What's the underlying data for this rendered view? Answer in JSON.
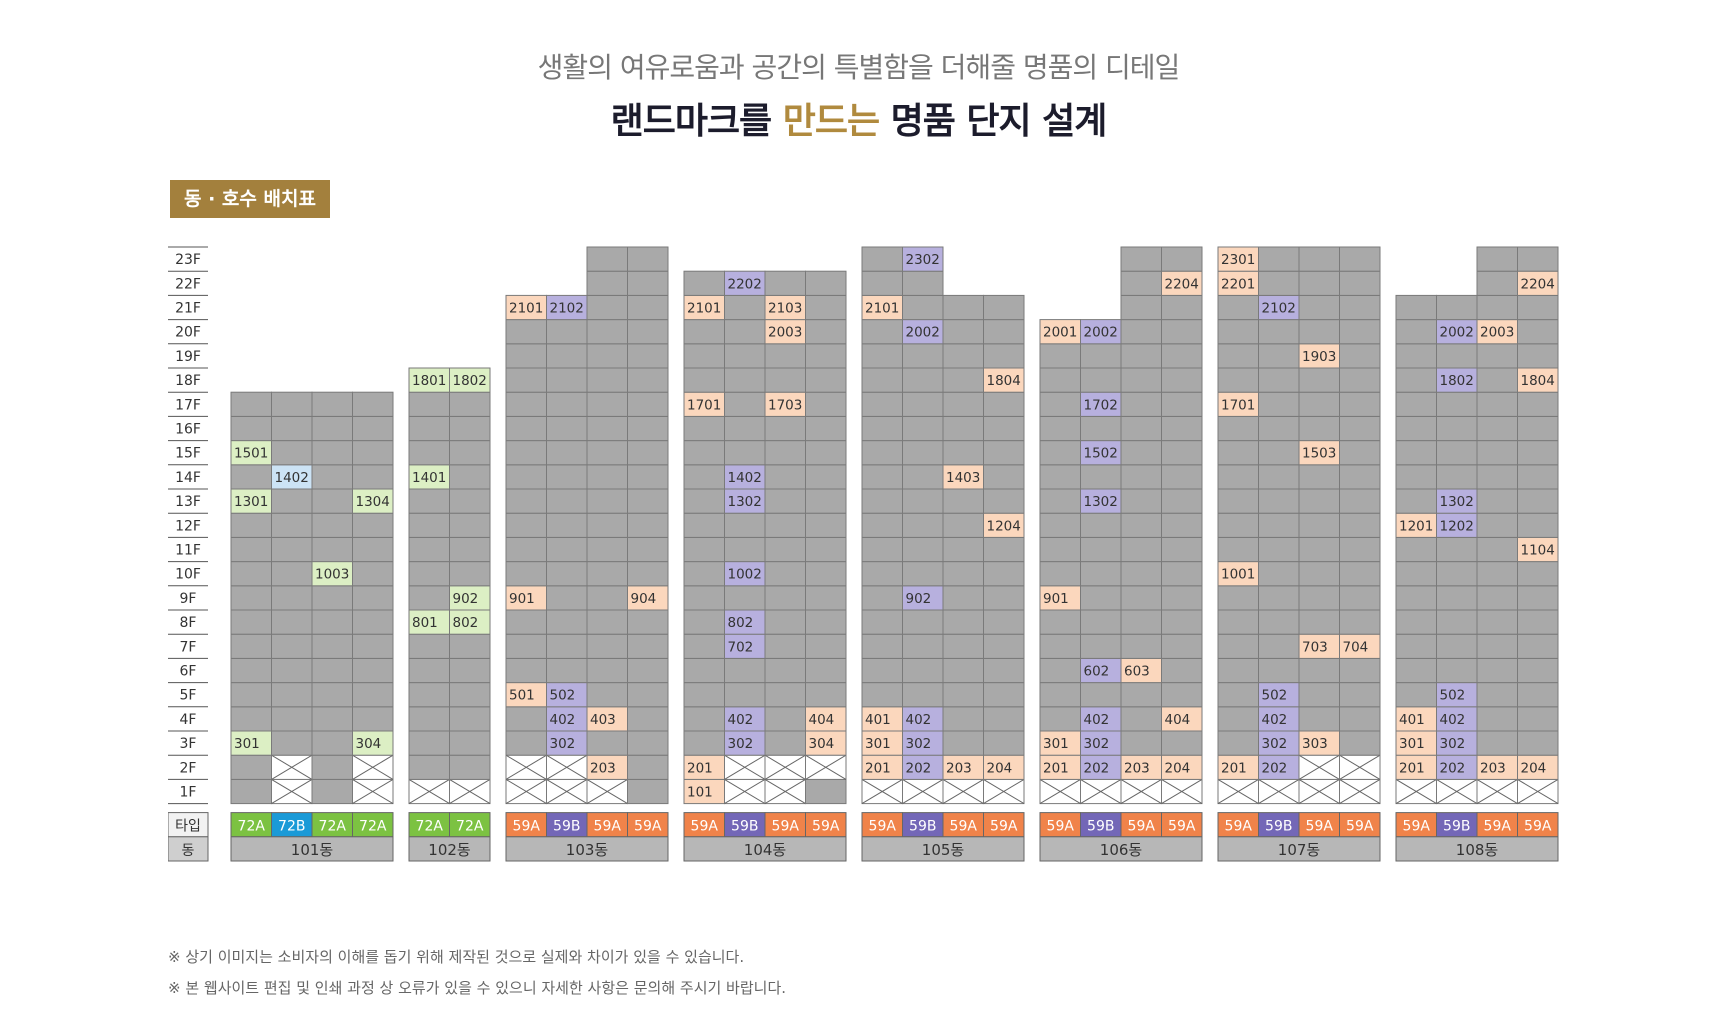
{
  "header": {
    "subtitle": "생활의 여유로움과 공간의 특별함을 더해줄 명품의 디테일",
    "title_pre": "랜드마크를 ",
    "title_accent": "만드는",
    "title_post": " 명품 단지 설계"
  },
  "badge": "동 · 호수 배치표",
  "axis": {
    "floors": [
      "23F",
      "22F",
      "21F",
      "20F",
      "19F",
      "18F",
      "17F",
      "16F",
      "15F",
      "14F",
      "13F",
      "12F",
      "11F",
      "10F",
      "9F",
      "8F",
      "7F",
      "6F",
      "5F",
      "4F",
      "3F",
      "2F",
      "1F"
    ],
    "type_label": "타입",
    "dong_label": "동"
  },
  "colors": {
    "gray": "#a9a9a9",
    "line": "#7a7a7a",
    "highlight": {
      "72A": "#dcefc4",
      "72B": "#cce3f5",
      "59A": "#fbd7bd",
      "59B": "#b7b0de"
    },
    "type": {
      "72A": "#7cc242",
      "72B": "#1a9ad7",
      "59A": "#f0834a",
      "59B": "#7367b7"
    }
  },
  "chart_data": {
    "type": "table",
    "buildings": [
      {
        "dong": "101동",
        "types": [
          "72A",
          "72B",
          "72A",
          "72A"
        ],
        "top": [
          17,
          17,
          17,
          17
        ],
        "empty": [
          [],
          [
            1,
            2
          ],
          [],
          [
            1,
            2
          ]
        ],
        "units": [
          "1501",
          "1402",
          "1301",
          "1304",
          "1003",
          "301",
          "304"
        ]
      },
      {
        "dong": "102동",
        "types": [
          "72A",
          "72A"
        ],
        "top": [
          18,
          18
        ],
        "empty": [
          [
            1
          ],
          [
            1
          ]
        ],
        "units": [
          "1801",
          "1802",
          "1401",
          "902",
          "801",
          "802"
        ]
      },
      {
        "dong": "103동",
        "types": [
          "59A",
          "59B",
          "59A",
          "59A"
        ],
        "top": [
          21,
          21,
          23,
          23
        ],
        "empty": [
          [
            1,
            2
          ],
          [
            1,
            2
          ],
          [
            1
          ],
          []
        ],
        "units": [
          "2101",
          "2102",
          "901",
          "904",
          "501",
          "502",
          "402",
          "403",
          "302",
          "203"
        ]
      },
      {
        "dong": "104동",
        "types": [
          "59A",
          "59B",
          "59A",
          "59A"
        ],
        "top": [
          22,
          22,
          22,
          22
        ],
        "empty": [
          [],
          [
            1,
            2
          ],
          [
            1,
            2
          ],
          [
            2
          ]
        ],
        "units": [
          "2202",
          "2101",
          "2103",
          "2003",
          "1701",
          "1703",
          "1402",
          "1302",
          "1002",
          "802",
          "702",
          "402",
          "404",
          "302",
          "304",
          "201",
          "101"
        ]
      },
      {
        "dong": "105동",
        "types": [
          "59A",
          "59B",
          "59A",
          "59A"
        ],
        "top": [
          23,
          23,
          21,
          21
        ],
        "empty": [
          [
            1
          ],
          [
            1
          ],
          [
            1
          ],
          [
            1
          ]
        ],
        "units": [
          "2302",
          "2101",
          "2002",
          "1804",
          "1403",
          "1204",
          "902",
          "401",
          "402",
          "301",
          "302",
          "201",
          "202",
          "203",
          "204"
        ]
      },
      {
        "dong": "106동",
        "types": [
          "59A",
          "59B",
          "59A",
          "59A"
        ],
        "top": [
          20,
          20,
          23,
          23
        ],
        "empty": [
          [
            1
          ],
          [
            1
          ],
          [
            1
          ],
          [
            1
          ]
        ],
        "units": [
          "2204",
          "2001",
          "2002",
          "1702",
          "1502",
          "1302",
          "901",
          "602",
          "603",
          "402",
          "404",
          "301",
          "302",
          "201",
          "202",
          "203",
          "204"
        ]
      },
      {
        "dong": "107동",
        "types": [
          "59A",
          "59B",
          "59A",
          "59A"
        ],
        "top": [
          23,
          23,
          23,
          23
        ],
        "empty": [
          [
            1
          ],
          [
            1
          ],
          [
            1,
            2
          ],
          [
            1,
            2
          ]
        ],
        "units": [
          "2301",
          "2201",
          "2102",
          "1903",
          "1701",
          "1503",
          "1001",
          "703",
          "704",
          "502",
          "402",
          "302",
          "303",
          "201",
          "202"
        ]
      },
      {
        "dong": "108동",
        "types": [
          "59A",
          "59B",
          "59A",
          "59A"
        ],
        "top": [
          21,
          21,
          23,
          23
        ],
        "empty": [
          [
            1
          ],
          [
            1
          ],
          [
            1
          ],
          [
            1
          ]
        ],
        "units": [
          "2204",
          "2002",
          "2003",
          "1802",
          "1804",
          "1302",
          "1201",
          "1202",
          "1104",
          "502",
          "401",
          "402",
          "301",
          "302",
          "201",
          "202",
          "203",
          "204"
        ]
      }
    ]
  },
  "notes": [
    "※ 상기 이미지는 소비자의 이해를 돕기 위해 제작된 것으로 실제와 차이가 있을 수 있습니다.",
    "※ 본 웹사이트 편집 및 인쇄 과정 상 오류가 있을 수 있으니 자세한 사항은 문의해 주시기 바랍니다."
  ]
}
